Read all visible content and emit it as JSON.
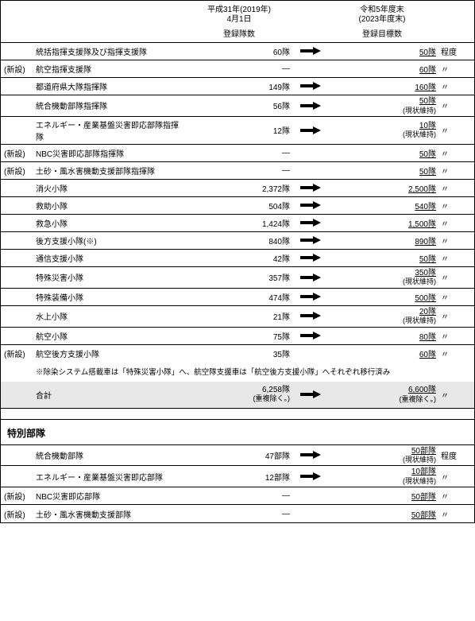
{
  "header": {
    "col2019_l1": "平成31年(2019年)",
    "col2019_l2": "4月1日",
    "col2019_sub": "登録隊数",
    "col2023_l1": "令和5年度末",
    "col2023_l2": "(2023年度末)",
    "col2023_sub": "登録目標数"
  },
  "suffix_teido": "程度",
  "suffix_ditto": "〃",
  "rows": [
    {
      "tag": "",
      "name": "統括指揮支援隊及び指揮支援隊",
      "v2019": "60隊",
      "arrow": true,
      "target": "50隊",
      "sub": "",
      "suffix": "程度"
    },
    {
      "tag": "(新設)",
      "name": "航空指揮支援隊",
      "v2019": "—",
      "arrow": false,
      "target": "60隊",
      "sub": "",
      "suffix": "〃"
    },
    {
      "tag": "",
      "name": "都道府県大隊指揮隊",
      "v2019": "149隊",
      "arrow": true,
      "target": "160隊",
      "sub": "",
      "suffix": "〃"
    },
    {
      "tag": "",
      "name": "統合機動部隊指揮隊",
      "v2019": "56隊",
      "arrow": true,
      "target": "50隊",
      "sub": "(現状維持)",
      "suffix": "〃"
    },
    {
      "tag": "",
      "name": "エネルギー・産業基盤災害即応部隊指揮隊",
      "v2019": "12隊",
      "arrow": true,
      "target": "10隊",
      "sub": "(現状維持)",
      "suffix": "〃"
    },
    {
      "tag": "(新設)",
      "name": "NBC災害即応部隊指揮隊",
      "v2019": "—",
      "arrow": false,
      "target": "50隊",
      "sub": "",
      "suffix": "〃"
    },
    {
      "tag": "(新設)",
      "name": "土砂・風水害機動支援部隊指揮隊",
      "v2019": "—",
      "arrow": false,
      "target": "50隊",
      "sub": "",
      "suffix": "〃"
    },
    {
      "tag": "",
      "name": "消火小隊",
      "v2019": "2,372隊",
      "arrow": true,
      "target": "2,500隊",
      "sub": "",
      "suffix": "〃"
    },
    {
      "tag": "",
      "name": "救助小隊",
      "v2019": "504隊",
      "arrow": true,
      "target": "540隊",
      "sub": "",
      "suffix": "〃"
    },
    {
      "tag": "",
      "name": "救急小隊",
      "v2019": "1,424隊",
      "arrow": true,
      "target": "1,500隊",
      "sub": "",
      "suffix": "〃"
    },
    {
      "tag": "",
      "name": "後方支援小隊(※)",
      "v2019": "840隊",
      "arrow": true,
      "target": "890隊",
      "sub": "",
      "suffix": "〃"
    },
    {
      "tag": "",
      "name": "通信支援小隊",
      "v2019": "42隊",
      "arrow": true,
      "target": "50隊",
      "sub": "",
      "suffix": "〃"
    },
    {
      "tag": "",
      "name": "特殊災害小隊",
      "v2019": "357隊",
      "arrow": true,
      "target": "350隊",
      "sub": "(現状維持)",
      "suffix": "〃"
    },
    {
      "tag": "",
      "name": "特殊装備小隊",
      "v2019": "474隊",
      "arrow": true,
      "target": "500隊",
      "sub": "",
      "suffix": "〃"
    },
    {
      "tag": "",
      "name": "水上小隊",
      "v2019": "21隊",
      "arrow": true,
      "target": "20隊",
      "sub": "(現状維持)",
      "suffix": "〃"
    },
    {
      "tag": "",
      "name": "航空小隊",
      "v2019": "75隊",
      "arrow": true,
      "target": "80隊",
      "sub": "",
      "suffix": "〃"
    },
    {
      "tag": "(新設)",
      "name": "航空後方支援小隊",
      "v2019": "35隊",
      "arrow": false,
      "target": "60隊",
      "sub": "",
      "suffix": "〃"
    }
  ],
  "note": "※除染システム搭載車は「特殊災害小隊」へ、航空隊支援車は「航空後方支援小隊」へそれぞれ移行済み",
  "total": {
    "name": "合計",
    "v2019_l1": "6,258隊",
    "v2019_l2": "(重複除く。)",
    "target": "6,600隊",
    "sub": "(重複除く。)",
    "suffix": "〃"
  },
  "section2_title": "特別部隊",
  "rows2": [
    {
      "tag": "",
      "name": "統合機動部隊",
      "v2019": "47部隊",
      "arrow": true,
      "target": "50部隊",
      "sub": "(現状維持)",
      "suffix": "程度"
    },
    {
      "tag": "",
      "name": "エネルギー・産業基盤災害即応部隊",
      "v2019": "12部隊",
      "arrow": true,
      "target": "10部隊",
      "sub": "(現状維持)",
      "suffix": "〃"
    },
    {
      "tag": "(新設)",
      "name": "NBC災害即応部隊",
      "v2019": "—",
      "arrow": false,
      "target": "50部隊",
      "sub": "",
      "suffix": "〃"
    },
    {
      "tag": "(新設)",
      "name": "土砂・風水害機動支援部隊",
      "v2019": "—",
      "arrow": false,
      "target": "50部隊",
      "sub": "",
      "suffix": "〃"
    }
  ]
}
